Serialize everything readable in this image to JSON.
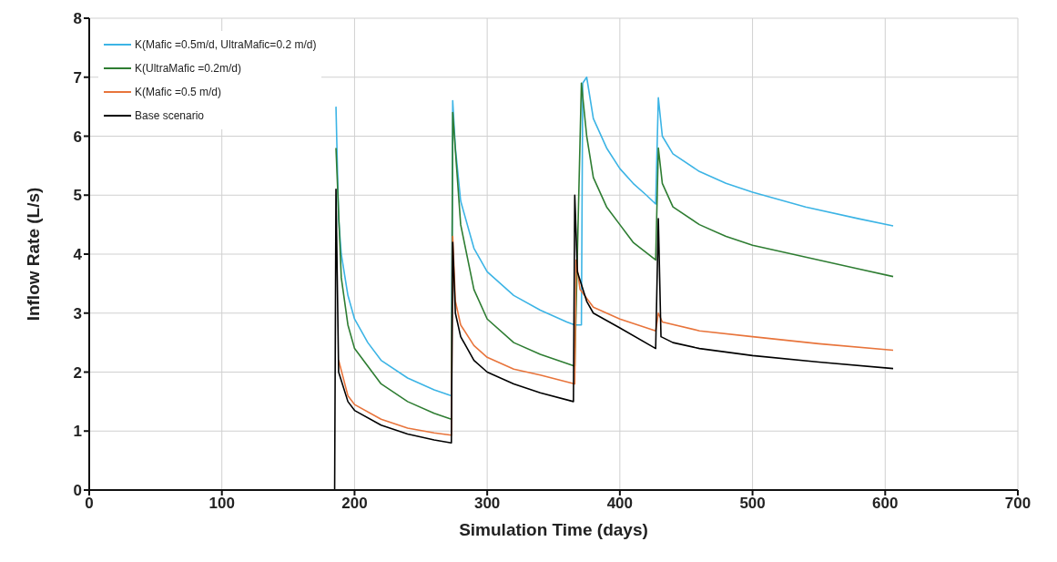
{
  "chart_data": {
    "type": "line",
    "xlabel": "Simulation Time (days)",
    "ylabel": "Inflow Rate (L/s)",
    "xlim": [
      0,
      700
    ],
    "xticks": [
      0,
      100,
      200,
      300,
      400,
      500,
      600,
      700
    ],
    "ylim": [
      0,
      8
    ],
    "yticks": [
      0,
      1,
      2,
      3,
      4,
      5,
      6,
      7,
      8
    ],
    "grid": true,
    "legend": "top left",
    "marker": "none",
    "line_style": "solid",
    "series": [
      {
        "name": "K(Mafic =0.5m/d, UltraMafic=0.2 m/d)",
        "color": "#3cb4e5",
        "x": [
          186,
          188,
          190,
          195,
          200,
          210,
          220,
          240,
          260,
          273,
          274,
          276,
          280,
          290,
          300,
          320,
          340,
          360,
          366,
          371,
          372,
          375,
          380,
          390,
          400,
          410,
          420,
          427,
          429,
          432,
          440,
          460,
          480,
          500,
          540,
          580,
          606
        ],
        "values": [
          6.5,
          4.6,
          4.0,
          3.3,
          2.9,
          2.5,
          2.2,
          1.9,
          1.7,
          1.6,
          6.6,
          5.8,
          4.9,
          4.1,
          3.7,
          3.3,
          3.05,
          2.85,
          2.8,
          2.8,
          6.9,
          7.0,
          6.3,
          5.8,
          5.45,
          5.2,
          5.0,
          4.85,
          6.65,
          6.0,
          5.7,
          5.4,
          5.2,
          5.05,
          4.8,
          4.6,
          4.48
        ]
      },
      {
        "name": "K(UltraMafic =0.2m/d)",
        "color": "#2e7d32",
        "x": [
          186,
          190,
          195,
          200,
          220,
          240,
          260,
          273,
          274,
          280,
          290,
          300,
          320,
          340,
          366,
          371,
          375,
          380,
          390,
          400,
          410,
          427,
          429,
          432,
          440,
          460,
          480,
          500,
          540,
          580,
          606
        ],
        "values": [
          5.8,
          3.6,
          2.8,
          2.4,
          1.8,
          1.5,
          1.3,
          1.2,
          6.4,
          4.5,
          3.4,
          2.9,
          2.5,
          2.3,
          2.1,
          6.9,
          6.0,
          5.3,
          4.8,
          4.5,
          4.2,
          3.9,
          5.8,
          5.2,
          4.8,
          4.5,
          4.3,
          4.15,
          3.95,
          3.75,
          3.62
        ]
      },
      {
        "name": "K(Mafic =0.5 m/d)",
        "color": "#e8743b",
        "x": [
          188,
          195,
          200,
          220,
          240,
          260,
          273,
          274,
          276,
          280,
          290,
          300,
          320,
          340,
          366,
          367,
          370,
          380,
          400,
          427,
          429,
          432,
          460,
          500,
          550,
          606
        ],
        "values": [
          2.2,
          1.6,
          1.45,
          1.2,
          1.05,
          0.97,
          0.93,
          4.3,
          3.2,
          2.8,
          2.45,
          2.25,
          2.05,
          1.95,
          1.8,
          3.9,
          3.4,
          3.1,
          2.9,
          2.7,
          3.0,
          2.85,
          2.7,
          2.6,
          2.48,
          2.37
        ]
      },
      {
        "name": "Base scenario",
        "color": "#000000",
        "x": [
          0,
          185,
          186,
          188,
          195,
          200,
          220,
          240,
          260,
          273,
          274,
          276,
          280,
          290,
          300,
          320,
          340,
          365,
          366,
          368,
          375,
          380,
          400,
          427,
          429,
          431,
          440,
          460,
          500,
          550,
          606
        ],
        "values": [
          0,
          0,
          5.1,
          2.0,
          1.5,
          1.35,
          1.1,
          0.95,
          0.85,
          0.8,
          4.2,
          3.0,
          2.6,
          2.2,
          2.0,
          1.8,
          1.65,
          1.5,
          5.0,
          3.7,
          3.2,
          3.0,
          2.75,
          2.4,
          4.6,
          2.6,
          2.5,
          2.4,
          2.28,
          2.17,
          2.06
        ]
      }
    ]
  }
}
